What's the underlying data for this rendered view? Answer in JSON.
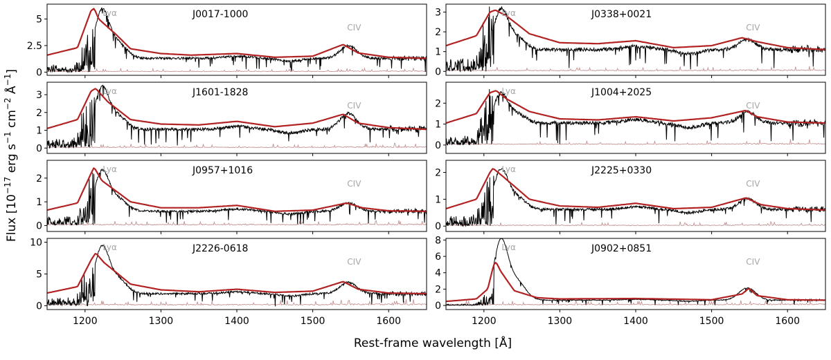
{
  "chart_data": {
    "type": "line",
    "xlabel": "Rest-frame wavelength [Å]",
    "ylabel": "Flux [10^-17 erg s^-1 cm^-2 Å^-1]",
    "xlim": [
      1150,
      1650
    ],
    "xticks": [
      1200,
      1300,
      1400,
      1500,
      1600
    ],
    "annotations": [
      {
        "text": "Lyα",
        "wavelength": 1216
      },
      {
        "text": "CIV",
        "wavelength": 1549
      }
    ],
    "series_styles": [
      {
        "name": "observed spectrum",
        "color": "#000000"
      },
      {
        "name": "model fit",
        "color": "#b22222"
      },
      {
        "name": "noise spectrum",
        "color": "#c49494"
      }
    ],
    "panels": [
      {
        "name": "J0017-1000",
        "ylim": [
          -0.3,
          6.4
        ],
        "yticks": [
          0,
          2.5,
          5
        ],
        "ytick_labels": [
          "0",
          "2.5",
          "5"
        ],
        "cont": 1.3,
        "lya_peak": 4.85,
        "civ_peak": 1.25,
        "pre_base": 0.45,
        "pre_amp": 1.3,
        "obs_lya": 4.3,
        "obs_civ": 1.2,
        "noise": 0.18,
        "red_points": [
          [
            1150,
            1.6
          ],
          [
            1190,
            2.3
          ],
          [
            1208,
            5.8
          ],
          [
            1212,
            6.0
          ],
          [
            1218,
            5.0
          ],
          [
            1240,
            3.6
          ],
          [
            1260,
            2.2
          ],
          [
            1300,
            1.75
          ],
          [
            1340,
            1.6
          ],
          [
            1400,
            1.75
          ],
          [
            1450,
            1.4
          ],
          [
            1500,
            1.5
          ],
          [
            1540,
            2.6
          ],
          [
            1560,
            1.8
          ],
          [
            1600,
            1.4
          ],
          [
            1650,
            1.3
          ]
        ]
      },
      {
        "name": "J0338+0021",
        "ylim": [
          -0.2,
          3.4
        ],
        "yticks": [
          0,
          1,
          2,
          3
        ],
        "ytick_labels": [
          "0",
          "1",
          "2",
          "3"
        ],
        "cont": 1.1,
        "lya_peak": 2.05,
        "civ_peak": 0.55,
        "pre_base": 0.4,
        "pre_amp": 1.0,
        "obs_lya": 1.9,
        "obs_civ": 0.5,
        "noise": 0.12,
        "red_points": [
          [
            1150,
            1.3
          ],
          [
            1190,
            1.8
          ],
          [
            1208,
            3.0
          ],
          [
            1215,
            3.1
          ],
          [
            1230,
            2.8
          ],
          [
            1260,
            1.9
          ],
          [
            1300,
            1.45
          ],
          [
            1350,
            1.4
          ],
          [
            1400,
            1.55
          ],
          [
            1450,
            1.2
          ],
          [
            1500,
            1.3
          ],
          [
            1540,
            1.7
          ],
          [
            1560,
            1.5
          ],
          [
            1600,
            1.2
          ],
          [
            1650,
            1.1
          ]
        ]
      },
      {
        "name": "J1601-1828",
        "ylim": [
          -0.3,
          3.7
        ],
        "yticks": [
          0,
          1,
          2,
          3
        ],
        "ytick_labels": [
          "0",
          "1",
          "2",
          "3"
        ],
        "cont": 1.05,
        "lya_peak": 2.3,
        "civ_peak": 0.85,
        "pre_base": 0.35,
        "pre_amp": 1.0,
        "obs_lya": 2.2,
        "obs_civ": 0.9,
        "noise": 0.12,
        "red_points": [
          [
            1150,
            1.1
          ],
          [
            1190,
            1.6
          ],
          [
            1208,
            3.2
          ],
          [
            1214,
            3.35
          ],
          [
            1230,
            2.6
          ],
          [
            1260,
            1.6
          ],
          [
            1300,
            1.35
          ],
          [
            1350,
            1.3
          ],
          [
            1400,
            1.5
          ],
          [
            1450,
            1.2
          ],
          [
            1500,
            1.4
          ],
          [
            1540,
            1.9
          ],
          [
            1560,
            1.4
          ],
          [
            1600,
            1.15
          ],
          [
            1650,
            1.05
          ]
        ]
      },
      {
        "name": "J1004+2025",
        "ylim": [
          -0.4,
          3.0
        ],
        "yticks": [
          0,
          1,
          2
        ],
        "ytick_labels": [
          "0",
          "1",
          "2"
        ],
        "cont": 1.05,
        "lya_peak": 1.5,
        "civ_peak": 0.6,
        "pre_base": 0.3,
        "pre_amp": 0.9,
        "obs_lya": 1.3,
        "obs_civ": 0.55,
        "noise": 0.12,
        "red_points": [
          [
            1150,
            1.05
          ],
          [
            1190,
            1.5
          ],
          [
            1208,
            2.5
          ],
          [
            1216,
            2.6
          ],
          [
            1230,
            2.2
          ],
          [
            1260,
            1.6
          ],
          [
            1300,
            1.25
          ],
          [
            1350,
            1.2
          ],
          [
            1400,
            1.35
          ],
          [
            1450,
            1.15
          ],
          [
            1500,
            1.3
          ],
          [
            1545,
            1.65
          ],
          [
            1560,
            1.35
          ],
          [
            1600,
            1.1
          ],
          [
            1650,
            1.05
          ]
        ]
      },
      {
        "name": "J0957+1016",
        "ylim": [
          -0.25,
          2.75
        ],
        "yticks": [
          0,
          1,
          2
        ],
        "ytick_labels": [
          "0",
          "1",
          "2"
        ],
        "cont": 0.6,
        "lya_peak": 1.85,
        "civ_peak": 0.35,
        "pre_base": 0.25,
        "pre_amp": 0.7,
        "obs_lya": 1.6,
        "obs_civ": 0.35,
        "noise": 0.1,
        "red_points": [
          [
            1150,
            0.65
          ],
          [
            1190,
            0.95
          ],
          [
            1208,
            2.2
          ],
          [
            1212,
            2.45
          ],
          [
            1222,
            1.9
          ],
          [
            1260,
            1.0
          ],
          [
            1300,
            0.75
          ],
          [
            1350,
            0.75
          ],
          [
            1400,
            0.85
          ],
          [
            1450,
            0.6
          ],
          [
            1500,
            0.65
          ],
          [
            1545,
            0.95
          ],
          [
            1565,
            0.75
          ],
          [
            1600,
            0.62
          ],
          [
            1650,
            0.6
          ]
        ]
      },
      {
        "name": "J2225+0330",
        "ylim": [
          -0.2,
          2.45
        ],
        "yticks": [
          0,
          1,
          2
        ],
        "ytick_labels": [
          "0",
          "1",
          "2"
        ],
        "cont": 0.62,
        "lya_peak": 1.55,
        "civ_peak": 0.45,
        "pre_base": 0.25,
        "pre_amp": 0.7,
        "obs_lya": 1.4,
        "obs_civ": 0.4,
        "noise": 0.08,
        "red_points": [
          [
            1150,
            0.65
          ],
          [
            1190,
            1.0
          ],
          [
            1208,
            2.0
          ],
          [
            1212,
            2.15
          ],
          [
            1225,
            1.85
          ],
          [
            1260,
            1.0
          ],
          [
            1300,
            0.75
          ],
          [
            1350,
            0.7
          ],
          [
            1400,
            0.85
          ],
          [
            1450,
            0.65
          ],
          [
            1500,
            0.7
          ],
          [
            1545,
            1.05
          ],
          [
            1565,
            0.8
          ],
          [
            1600,
            0.65
          ],
          [
            1650,
            0.6
          ]
        ]
      },
      {
        "name": "J2226-0618",
        "ylim": [
          -0.6,
          10.6
        ],
        "yticks": [
          0,
          5,
          10
        ],
        "ytick_labels": [
          "0",
          "5",
          "10"
        ],
        "cont": 1.9,
        "lya_peak": 6.2,
        "civ_peak": 1.7,
        "pre_base": 0.8,
        "pre_amp": 2.6,
        "obs_lya": 7.0,
        "obs_civ": 1.8,
        "noise": 0.45,
        "red_points": [
          [
            1150,
            2.0
          ],
          [
            1190,
            3.0
          ],
          [
            1208,
            7.2
          ],
          [
            1214,
            8.3
          ],
          [
            1225,
            6.8
          ],
          [
            1260,
            3.4
          ],
          [
            1300,
            2.5
          ],
          [
            1350,
            2.2
          ],
          [
            1400,
            2.6
          ],
          [
            1450,
            2.1
          ],
          [
            1500,
            2.3
          ],
          [
            1540,
            3.8
          ],
          [
            1560,
            2.6
          ],
          [
            1600,
            2.0
          ],
          [
            1650,
            1.9
          ]
        ]
      },
      {
        "name": "J0902+0851",
        "ylim": [
          -0.5,
          8.2
        ],
        "yticks": [
          0,
          2,
          4,
          6,
          8
        ],
        "ytick_labels": [
          "0",
          "2",
          "4",
          "6",
          "8"
        ],
        "cont": 0.65,
        "lya_peak": 6.8,
        "civ_peak": 1.5,
        "pre_base": 0.1,
        "pre_amp": 0.7,
        "obs_lya": 6.9,
        "obs_civ": 1.5,
        "noise": 0.3,
        "red_points": [
          [
            1150,
            0.5
          ],
          [
            1190,
            0.8
          ],
          [
            1205,
            2.0
          ],
          [
            1213,
            5.0
          ],
          [
            1216,
            5.3
          ],
          [
            1222,
            4.2
          ],
          [
            1240,
            1.8
          ],
          [
            1270,
            0.95
          ],
          [
            1300,
            0.8
          ],
          [
            1400,
            0.85
          ],
          [
            1500,
            0.7
          ],
          [
            1540,
            1.4
          ],
          [
            1549,
            2.1
          ],
          [
            1560,
            1.2
          ],
          [
            1600,
            0.7
          ],
          [
            1650,
            0.65
          ]
        ]
      }
    ]
  }
}
